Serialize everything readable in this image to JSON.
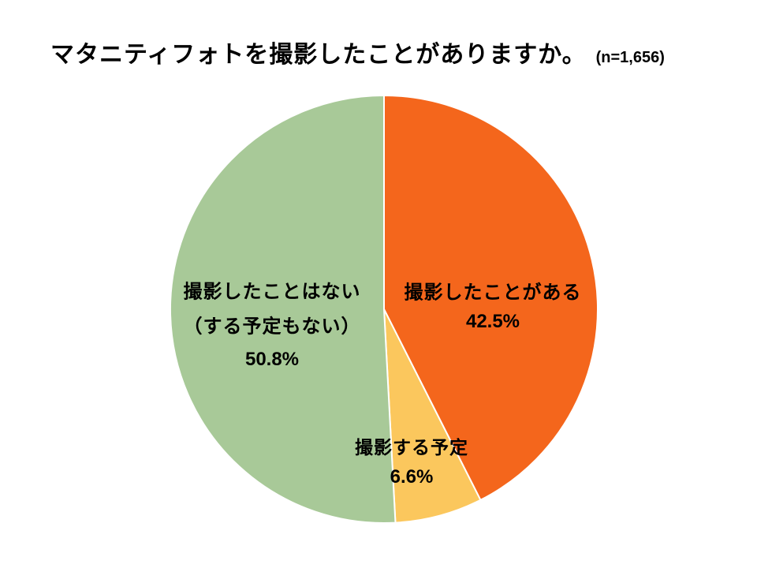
{
  "page": {
    "background": "#ffffff"
  },
  "header": {
    "title": "マタニティフォトを撮影したことがありますか。",
    "sample": "(n=1,656)"
  },
  "chart_data": {
    "type": "pie",
    "title": "マタニティフォトを撮影したことがありますか。",
    "annotation": "(n=1,656)",
    "start_angle_deg": 0,
    "direction": "clockwise",
    "legend_position": "none",
    "labels_position": "inside",
    "slices": [
      {
        "label": "撮影したことがある",
        "label_lines": [
          "撮影したことがある"
        ],
        "value": 42.5,
        "display_value": "42.5%",
        "color": "#F4661C"
      },
      {
        "label": "撮影する予定",
        "label_lines": [
          "撮影する予定"
        ],
        "value": 6.6,
        "display_value": "6.6%",
        "color": "#FBC75D"
      },
      {
        "label": "撮影したことはない（する予定もない）",
        "label_lines": [
          "撮影したことはない",
          "（する予定もない）"
        ],
        "value": 50.8,
        "display_value": "50.8%",
        "color": "#A8C998"
      }
    ]
  }
}
